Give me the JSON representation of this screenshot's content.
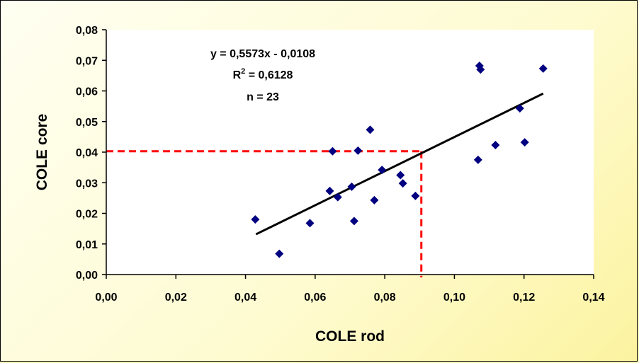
{
  "chart_data": {
    "type": "scatter",
    "xlabel": "COLE rod",
    "ylabel": "COLE core",
    "xlim": [
      0,
      0.14
    ],
    "ylim": [
      0,
      0.08
    ],
    "xticks": [
      "0,00",
      "0,02",
      "0,04",
      "0,06",
      "0,08",
      "0,10",
      "0,12",
      "0,14"
    ],
    "yticks": [
      "0,00",
      "0,01",
      "0,02",
      "0,03",
      "0,04",
      "0,05",
      "0,06",
      "0,07",
      "0,08"
    ],
    "grid": false,
    "equation": "y = 0,5573x - 0,0108",
    "r2_prefix": "R",
    "r2_exp": "2",
    "r2_value": " = 0,6128",
    "n_label": "n = 23",
    "trendline": {
      "slope": 0.5573,
      "intercept": -0.0108,
      "x_range": [
        0.043,
        0.1255
      ]
    },
    "reference": {
      "x": 0.0905,
      "y": 0.0403
    },
    "series": [
      {
        "marker_color": "#000080",
        "points": [
          [
            0.0428,
            0.018
          ],
          [
            0.0497,
            0.0068
          ],
          [
            0.0585,
            0.0168
          ],
          [
            0.0642,
            0.0273
          ],
          [
            0.065,
            0.0403
          ],
          [
            0.0665,
            0.0253
          ],
          [
            0.0705,
            0.0287
          ],
          [
            0.0712,
            0.0175
          ],
          [
            0.0723,
            0.0405
          ],
          [
            0.0758,
            0.0473
          ],
          [
            0.077,
            0.0243
          ],
          [
            0.0792,
            0.0342
          ],
          [
            0.0845,
            0.0325
          ],
          [
            0.0852,
            0.0298
          ],
          [
            0.0888,
            0.0257
          ],
          [
            0.1068,
            0.0375
          ],
          [
            0.1072,
            0.0682
          ],
          [
            0.1075,
            0.067
          ],
          [
            0.1118,
            0.0423
          ],
          [
            0.1188,
            0.0543
          ],
          [
            0.1202,
            0.0432
          ],
          [
            0.1255,
            0.0673
          ]
        ]
      }
    ],
    "trendline_color": "#000000",
    "reference_color": "#ff0000"
  }
}
